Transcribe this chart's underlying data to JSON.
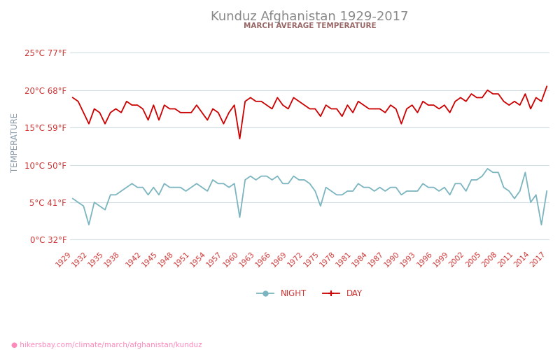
{
  "title": "Kunduz Afghanistan 1929-2017",
  "subtitle": "MARCH AVERAGE TEMPERATURE",
  "ylabel": "TEMPERATURE",
  "watermark": "● hikersbay.com/climate/march/afghanistan/kunduz",
  "yticks_c": [
    0,
    5,
    10,
    15,
    20,
    25
  ],
  "yticks_f": [
    32,
    41,
    50,
    59,
    68,
    77
  ],
  "ylim": [
    -1,
    27
  ],
  "xlim": [
    1928.5,
    2017.5
  ],
  "day_color": "#cc0000",
  "night_color": "#7cb5c0",
  "title_color": "#888888",
  "subtitle_color": "#996666",
  "tick_color": "#cc3333",
  "bg_color": "#ffffff",
  "grid_color": "#d0dde5",
  "ylabel_color": "#8899aa",
  "all_years": [
    1929,
    1930,
    1931,
    1932,
    1933,
    1934,
    1935,
    1936,
    1937,
    1938,
    1939,
    1940,
    1941,
    1942,
    1943,
    1944,
    1945,
    1946,
    1947,
    1948,
    1949,
    1950,
    1951,
    1952,
    1953,
    1954,
    1955,
    1956,
    1957,
    1958,
    1959,
    1960,
    1961,
    1962,
    1963,
    1964,
    1965,
    1966,
    1967,
    1968,
    1969,
    1970,
    1971,
    1972,
    1973,
    1974,
    1975,
    1976,
    1977,
    1978,
    1979,
    1980,
    1981,
    1982,
    1983,
    1984,
    1985,
    1986,
    1987,
    1988,
    1989,
    1990,
    1991,
    1992,
    1993,
    1994,
    1995,
    1996,
    1997,
    1998,
    1999,
    2000,
    2001,
    2002,
    2003,
    2004,
    2005,
    2006,
    2007,
    2008,
    2009,
    2010,
    2011,
    2012,
    2013,
    2014,
    2015,
    2016,
    2017
  ],
  "day_temps": [
    19.0,
    18.5,
    17.0,
    15.5,
    17.5,
    17.0,
    15.5,
    17.0,
    17.5,
    17.0,
    18.5,
    18.0,
    18.0,
    17.5,
    16.0,
    18.0,
    16.0,
    18.0,
    17.5,
    17.5,
    17.0,
    17.0,
    17.0,
    18.0,
    17.0,
    16.0,
    17.5,
    17.0,
    15.5,
    17.0,
    18.0,
    13.5,
    18.5,
    19.0,
    18.5,
    18.5,
    18.0,
    17.5,
    19.0,
    18.0,
    17.5,
    19.0,
    18.5,
    18.0,
    17.5,
    17.5,
    16.5,
    18.0,
    17.5,
    17.5,
    16.5,
    18.0,
    17.0,
    18.5,
    18.0,
    17.5,
    17.5,
    17.5,
    17.0,
    18.0,
    17.5,
    15.5,
    17.5,
    18.0,
    17.0,
    18.5,
    18.0,
    18.0,
    17.5,
    18.0,
    17.0,
    18.5,
    19.0,
    18.5,
    19.5,
    19.0,
    19.0,
    20.0,
    19.5,
    19.5,
    18.5,
    18.0,
    18.5,
    18.0,
    19.5,
    17.5,
    19.0,
    18.5,
    20.5
  ],
  "night_temps": [
    5.5,
    5.0,
    4.5,
    2.0,
    5.0,
    4.5,
    4.0,
    6.0,
    6.0,
    6.5,
    7.0,
    7.5,
    7.0,
    7.0,
    6.0,
    7.0,
    6.0,
    7.5,
    7.0,
    7.0,
    7.0,
    6.5,
    7.0,
    7.5,
    7.0,
    6.5,
    8.0,
    7.5,
    7.5,
    7.0,
    7.5,
    3.0,
    8.0,
    8.5,
    8.0,
    8.5,
    8.5,
    8.0,
    8.5,
    7.5,
    7.5,
    8.5,
    8.0,
    8.0,
    7.5,
    6.5,
    4.5,
    7.0,
    6.5,
    6.0,
    6.0,
    6.5,
    6.5,
    7.5,
    7.0,
    7.0,
    6.5,
    7.0,
    6.5,
    7.0,
    7.0,
    6.0,
    6.5,
    6.5,
    6.5,
    7.5,
    7.0,
    7.0,
    6.5,
    7.0,
    6.0,
    7.5,
    7.5,
    6.5,
    8.0,
    8.0,
    8.5,
    9.5,
    9.0,
    9.0,
    7.0,
    6.5,
    5.5,
    6.5,
    9.0,
    5.0,
    6.0,
    2.0,
    6.5
  ]
}
